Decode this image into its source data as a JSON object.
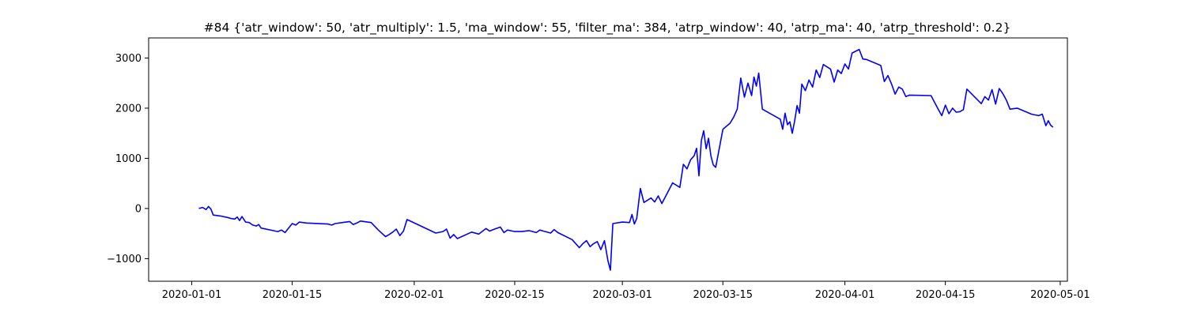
{
  "chart_data": {
    "type": "line",
    "title": "#84 {'atr_window': 50, 'atr_multiply': 1.5, 'ma_window': 55, 'filter_ma': 384, 'atrp_window': 40, 'atrp_ma': 40, 'atrp_threshold': 0.2}",
    "xlabel": "",
    "ylabel": "",
    "x_type": "date",
    "xlim": [
      "2019-12-26",
      "2020-05-02"
    ],
    "ylim": [
      -1450,
      3400
    ],
    "grid": false,
    "legend": "none",
    "line_color": "#0000ff",
    "xticks": [
      {
        "value": "2020-01-01",
        "label": "2020-01-01"
      },
      {
        "value": "2020-01-15",
        "label": "2020-01-15"
      },
      {
        "value": "2020-02-01",
        "label": "2020-02-01"
      },
      {
        "value": "2020-02-15",
        "label": "2020-02-15"
      },
      {
        "value": "2020-03-01",
        "label": "2020-03-01"
      },
      {
        "value": "2020-03-15",
        "label": "2020-03-15"
      },
      {
        "value": "2020-04-01",
        "label": "2020-04-01"
      },
      {
        "value": "2020-04-15",
        "label": "2020-04-15"
      },
      {
        "value": "2020-05-01",
        "label": "2020-05-01"
      }
    ],
    "yticks": [
      {
        "value": -1000,
        "label": "−1000"
      },
      {
        "value": 0,
        "label": "0"
      },
      {
        "value": 1000,
        "label": "1000"
      },
      {
        "value": 2000,
        "label": "2000"
      },
      {
        "value": 3000,
        "label": "3000"
      }
    ],
    "series": [
      {
        "x": [
          "2020-01-02",
          "2020-01-02",
          "2020-01-03",
          "2020-01-03",
          "2020-01-03",
          "2020-01-04",
          "2020-01-05",
          "2020-01-06",
          "2020-01-06",
          "2020-01-07",
          "2020-01-07",
          "2020-01-07",
          "2020-01-08",
          "2020-01-08",
          "2020-01-09",
          "2020-01-09",
          "2020-01-10",
          "2020-01-10",
          "2020-01-10",
          "2020-01-13",
          "2020-01-13",
          "2020-01-14",
          "2020-01-15",
          "2020-01-15",
          "2020-01-16",
          "2020-01-17",
          "2020-01-20",
          "2020-01-20",
          "2020-01-21",
          "2020-01-22",
          "2020-01-23",
          "2020-01-23",
          "2020-01-24",
          "2020-01-24",
          "2020-01-26",
          "2020-01-27",
          "2020-01-28",
          "2020-01-28",
          "2020-01-29",
          "2020-01-29",
          "2020-01-30",
          "2020-01-30",
          "2020-01-31",
          "2020-02-04",
          "2020-02-05",
          "2020-02-05",
          "2020-02-06",
          "2020-02-06",
          "2020-02-07",
          "2020-02-09",
          "2020-02-10",
          "2020-02-11",
          "2020-02-11",
          "2020-02-12",
          "2020-02-13",
          "2020-02-13",
          "2020-02-14",
          "2020-02-15",
          "2020-02-16",
          "2020-02-17",
          "2020-02-18",
          "2020-02-18",
          "2020-02-19",
          "2020-02-20",
          "2020-02-20",
          "2020-02-21",
          "2020-02-23",
          "2020-02-24",
          "2020-02-24",
          "2020-02-25",
          "2020-02-25",
          "2020-02-26",
          "2020-02-26",
          "2020-02-27",
          "2020-02-27",
          "2020-02-28",
          "2020-02-28",
          "2020-02-28",
          "2020-03-01",
          "2020-03-02",
          "2020-03-02",
          "2020-03-02",
          "2020-03-03",
          "2020-03-03",
          "2020-03-04",
          "2020-03-05",
          "2020-03-05",
          "2020-03-06",
          "2020-03-06",
          "2020-03-08",
          "2020-03-09",
          "2020-03-09",
          "2020-03-10",
          "2020-03-10",
          "2020-03-11",
          "2020-03-11",
          "2020-03-11",
          "2020-03-12",
          "2020-03-12",
          "2020-03-12",
          "2020-03-13",
          "2020-03-13",
          "2020-03-13",
          "2020-03-14",
          "2020-03-15",
          "2020-03-16",
          "2020-03-16",
          "2020-03-17",
          "2020-03-17",
          "2020-03-18",
          "2020-03-18",
          "2020-03-19",
          "2020-03-19",
          "2020-03-19",
          "2020-03-20",
          "2020-03-20",
          "2020-03-23",
          "2020-03-23",
          "2020-03-23",
          "2020-03-24",
          "2020-03-24",
          "2020-03-24",
          "2020-03-25",
          "2020-03-25",
          "2020-03-25",
          "2020-03-26",
          "2020-03-26",
          "2020-03-27",
          "2020-03-27",
          "2020-03-28",
          "2020-03-28",
          "2020-03-29",
          "2020-03-30",
          "2020-03-30",
          "2020-03-31",
          "2020-03-31",
          "2020-04-01",
          "2020-04-01",
          "2020-04-02",
          "2020-04-03",
          "2020-04-03",
          "2020-04-04",
          "2020-04-06",
          "2020-04-06",
          "2020-04-07",
          "2020-04-07",
          "2020-04-08",
          "2020-04-08",
          "2020-04-09",
          "2020-04-09",
          "2020-04-10",
          "2020-04-13",
          "2020-04-14",
          "2020-04-14",
          "2020-04-15",
          "2020-04-15",
          "2020-04-16",
          "2020-04-16",
          "2020-04-17",
          "2020-04-17",
          "2020-04-18",
          "2020-04-20",
          "2020-04-20",
          "2020-04-21",
          "2020-04-21",
          "2020-04-22",
          "2020-04-22",
          "2020-04-23",
          "2020-04-23",
          "2020-04-24",
          "2020-04-25",
          "2020-04-27",
          "2020-04-28",
          "2020-04-28",
          "2020-04-29",
          "2020-04-29",
          "2020-04-29",
          "2020-04-30"
        ],
        "y": [
          0,
          20,
          -20,
          40,
          -10,
          -130,
          -150,
          -180,
          -200,
          -210,
          -170,
          -240,
          -160,
          -270,
          -280,
          -330,
          -350,
          -320,
          -390,
          -460,
          -430,
          -480,
          -300,
          -330,
          -270,
          -290,
          -310,
          -330,
          -300,
          -280,
          -260,
          -320,
          -290,
          -250,
          -280,
          -430,
          -560,
          -520,
          -470,
          -410,
          -540,
          -450,
          -220,
          -490,
          -460,
          -410,
          -590,
          -520,
          -600,
          -470,
          -510,
          -400,
          -450,
          -420,
          -370,
          -480,
          -430,
          -460,
          -460,
          -440,
          -480,
          -430,
          -450,
          -490,
          -420,
          -480,
          -620,
          -780,
          -700,
          -640,
          -760,
          -700,
          -660,
          -820,
          -640,
          -1050,
          -1230,
          -300,
          -270,
          -280,
          -120,
          -310,
          -200,
          400,
          120,
          210,
          130,
          250,
          100,
          510,
          420,
          880,
          790,
          970,
          1050,
          1200,
          650,
          1350,
          1550,
          1190,
          1400,
          1050,
          870,
          820,
          1580,
          1700,
          1820,
          1980,
          2600,
          2220,
          2500,
          2250,
          2620,
          2440,
          2700,
          1980,
          1780,
          1580,
          1900,
          1670,
          1730,
          1500,
          1740,
          2050,
          1900,
          2480,
          2350,
          2560,
          2420,
          2760,
          2610,
          2870,
          2780,
          2520,
          2760,
          2690,
          2880,
          2780,
          3100,
          3170,
          2980,
          2970,
          2850,
          2530,
          2650,
          2480,
          2280,
          2420,
          2380,
          2230,
          2260,
          2250,
          1980,
          1850,
          2060,
          1890,
          2000,
          1920,
          1930,
          1970,
          2380,
          2090,
          2230,
          2160,
          2370,
          2080,
          2390,
          2290,
          2160,
          1980,
          2000,
          1880,
          1850,
          1880,
          1650,
          1750,
          1660,
          1620
        ],
        "color": "#0000ff"
      }
    ]
  }
}
